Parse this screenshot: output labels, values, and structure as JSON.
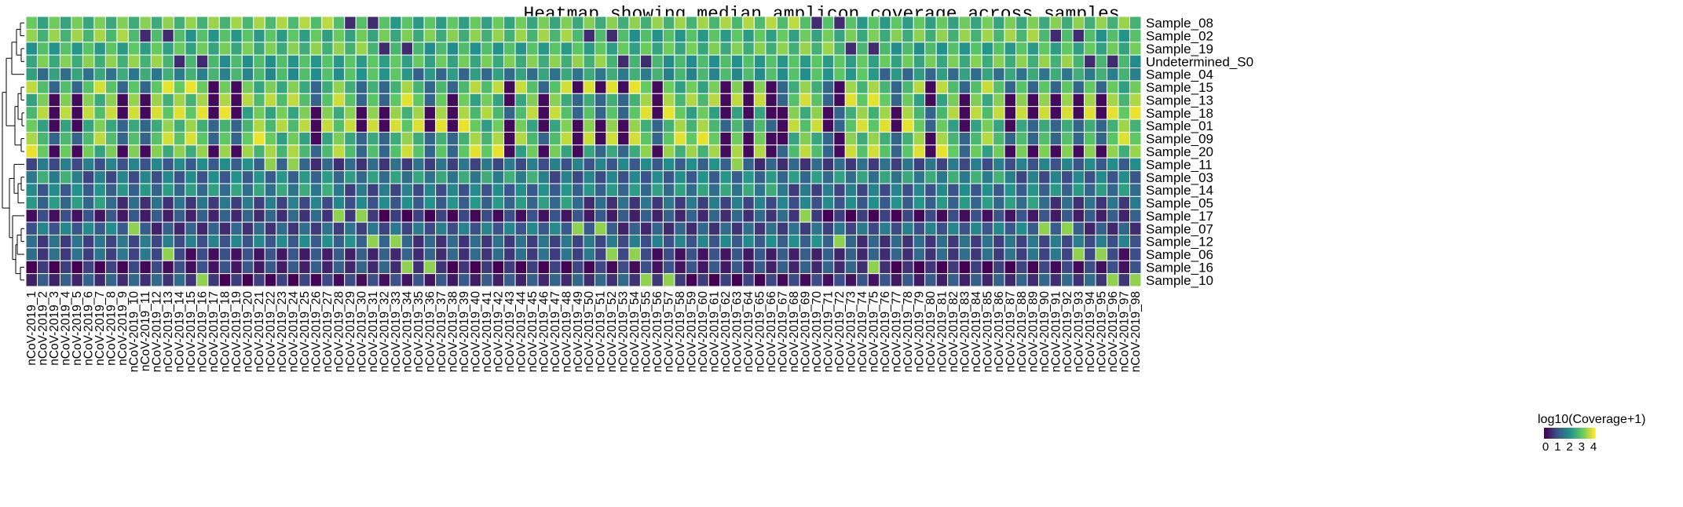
{
  "chart_data": {
    "type": "heatmap",
    "title": "Heatmap showing median amplicon coverage across samples",
    "legend_title": "log10(Coverage+1)",
    "legend_ticks": [
      "0",
      "1",
      "2",
      "3",
      "4"
    ],
    "value_range": [
      0,
      4
    ],
    "colormap": "viridis",
    "colors": [
      "#440154",
      "#3b528b",
      "#21918c",
      "#5ec962",
      "#fde725"
    ],
    "cell_border_color": "#ffffff",
    "row_dendrogram": true,
    "columns": [
      "nCoV-2019_1",
      "nCoV-2019_2",
      "nCoV-2019_3",
      "nCoV-2019_4",
      "nCoV-2019_5",
      "nCoV-2019_6",
      "nCoV-2019_7",
      "nCoV-2019_8",
      "nCoV-2019_9",
      "nCoV-2019_10",
      "nCoV-2019_11",
      "nCoV-2019_12",
      "nCoV-2019_13",
      "nCoV-2019_14",
      "nCoV-2019_15",
      "nCoV-2019_16",
      "nCoV-2019_17",
      "nCoV-2019_18",
      "nCoV-2019_19",
      "nCoV-2019_20",
      "nCoV-2019_21",
      "nCoV-2019_22",
      "nCoV-2019_23",
      "nCoV-2019_24",
      "nCoV-2019_25",
      "nCoV-2019_26",
      "nCoV-2019_27",
      "nCoV-2019_28",
      "nCoV-2019_29",
      "nCoV-2019_30",
      "nCoV-2019_31",
      "nCoV-2019_32",
      "nCoV-2019_33",
      "nCoV-2019_34",
      "nCoV-2019_35",
      "nCoV-2019_36",
      "nCoV-2019_37",
      "nCoV-2019_38",
      "nCoV-2019_39",
      "nCoV-2019_40",
      "nCoV-2019_41",
      "nCoV-2019_42",
      "nCoV-2019_43",
      "nCoV-2019_44",
      "nCoV-2019_45",
      "nCoV-2019_46",
      "nCoV-2019_47",
      "nCoV-2019_48",
      "nCoV-2019_49",
      "nCoV-2019_50",
      "nCoV-2019_51",
      "nCoV-2019_52",
      "nCoV-2019_53",
      "nCoV-2019_54",
      "nCoV-2019_55",
      "nCoV-2019_56",
      "nCoV-2019_57",
      "nCoV-2019_58",
      "nCoV-2019_59",
      "nCoV-2019_60",
      "nCoV-2019_61",
      "nCoV-2019_62",
      "nCoV-2019_63",
      "nCoV-2019_64",
      "nCoV-2019_65",
      "nCoV-2019_66",
      "nCoV-2019_67",
      "nCoV-2019_68",
      "nCoV-2019_69",
      "nCoV-2019_70",
      "nCoV-2019_71",
      "nCoV-2019_72",
      "nCoV-2019_73",
      "nCoV-2019_74",
      "nCoV-2019_75",
      "nCoV-2019_76",
      "nCoV-2019_77",
      "nCoV-2019_78",
      "nCoV-2019_79",
      "nCoV-2019_80",
      "nCoV-2019_81",
      "nCoV-2019_82",
      "nCoV-2019_83",
      "nCoV-2019_84",
      "nCoV-2019_85",
      "nCoV-2019_86",
      "nCoV-2019_87",
      "nCoV-2019_88",
      "nCoV-2019_89",
      "nCoV-2019_90",
      "nCoV-2019_91",
      "nCoV-2019_92",
      "nCoV-2019_93",
      "nCoV-2019_94",
      "nCoV-2019_95",
      "nCoV-2019_96",
      "nCoV-2019_97",
      "nCoV-2019_98"
    ],
    "rows": [
      "Sample_08",
      "Sample_02",
      "Sample_19",
      "Undetermined_S0",
      "Sample_04",
      "Sample_15",
      "Sample_13",
      "Sample_18",
      "Sample_01",
      "Sample_09",
      "Sample_20",
      "Sample_11",
      "Sample_03",
      "Sample_14",
      "Sample_05",
      "Sample_17",
      "Sample_07",
      "Sample_12",
      "Sample_06",
      "Sample_16",
      "Sample_10"
    ],
    "row_profiles": [
      {
        "row": "Sample_08",
        "base": 2.8,
        "pattern": "high"
      },
      {
        "row": "Sample_02",
        "base": 2.7,
        "pattern": "high"
      },
      {
        "row": "Sample_19",
        "base": 2.6,
        "pattern": "high"
      },
      {
        "row": "Undetermined_S0",
        "base": 2.6,
        "pattern": "high"
      },
      {
        "row": "Sample_04",
        "base": 2.1,
        "pattern": "mid"
      },
      {
        "row": "Sample_15",
        "base": 2.6,
        "pattern": "stripe"
      },
      {
        "row": "Sample_13",
        "base": 2.6,
        "pattern": "stripe"
      },
      {
        "row": "Sample_18",
        "base": 2.6,
        "pattern": "stripe"
      },
      {
        "row": "Sample_01",
        "base": 2.6,
        "pattern": "stripe"
      },
      {
        "row": "Sample_09",
        "base": 2.7,
        "pattern": "stripe"
      },
      {
        "row": "Sample_20",
        "base": 2.6,
        "pattern": "stripe"
      },
      {
        "row": "Sample_11",
        "base": 1.3,
        "pattern": "low"
      },
      {
        "row": "Sample_03",
        "base": 1.7,
        "pattern": "mid"
      },
      {
        "row": "Sample_14",
        "base": 1.6,
        "pattern": "mid"
      },
      {
        "row": "Sample_05",
        "base": 1.4,
        "pattern": "mid"
      },
      {
        "row": "Sample_17",
        "base": 0.7,
        "pattern": "low"
      },
      {
        "row": "Sample_07",
        "base": 1.2,
        "pattern": "low"
      },
      {
        "row": "Sample_12",
        "base": 1.3,
        "pattern": "low"
      },
      {
        "row": "Sample_06",
        "base": 0.9,
        "pattern": "low"
      },
      {
        "row": "Sample_16",
        "base": 0.6,
        "pattern": "low"
      },
      {
        "row": "Sample_10",
        "base": 0.7,
        "pattern": "low"
      }
    ]
  }
}
